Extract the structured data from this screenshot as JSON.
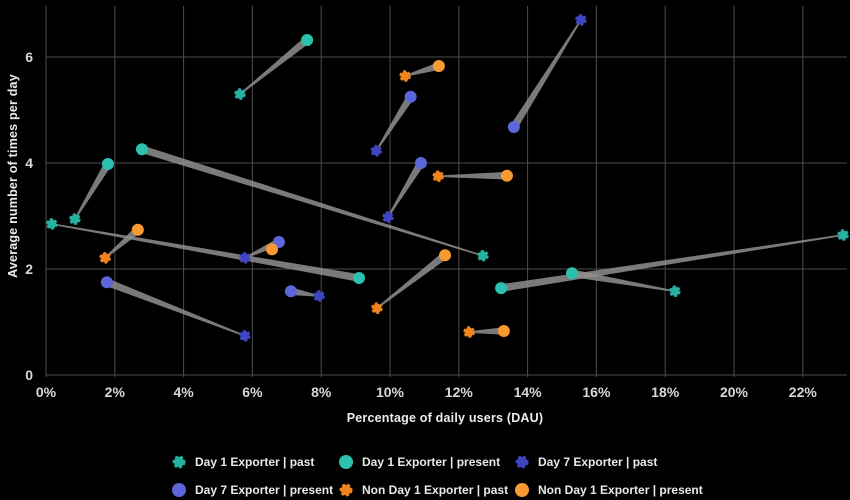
{
  "axes": {
    "x_label": "Percentage of daily users (DAU)",
    "y_label": "Average number of times per day",
    "x_tick_labels": [
      "0%",
      "2%",
      "4%",
      "6%",
      "8%",
      "10%",
      "12%",
      "14%",
      "16%",
      "18%",
      "20%",
      "22%"
    ],
    "x_tick_values": [
      0,
      2,
      4,
      6,
      8,
      10,
      12,
      14,
      16,
      18,
      20,
      22
    ],
    "y_tick_labels": [
      "0",
      "2",
      "4",
      "6"
    ],
    "y_tick_values": [
      0,
      2,
      4,
      6
    ]
  },
  "colors": {
    "background": "#000000",
    "grid": "#4c4c4c",
    "trail": "#8f8f8f",
    "tick_text": "#d8d8d8",
    "teal_past": "#26b1a1",
    "teal_present": "#2cc0ae",
    "blue_past": "#4046c0",
    "blue_present": "#5a66d9",
    "orange_past": "#f28420",
    "orange_present": "#f89a31"
  },
  "chart_data": {
    "type": "scatter",
    "subtype": "comet-pairs",
    "title": "",
    "xlabel": "Percentage of daily users (DAU)",
    "ylabel": "Average number of times per day",
    "x_range_pct": [
      0,
      23.2
    ],
    "ylim": [
      0,
      6.92
    ],
    "grid": true,
    "legend_position": "bottom",
    "series": [
      {
        "name": "Day 1 Exporter",
        "color_past": "#26b1a1",
        "color_present": "#2cc0ae",
        "pairs": [
          {
            "past": [
              0.84,
              2.94
            ],
            "present": [
              1.8,
              3.98
            ]
          },
          {
            "past": [
              0.17,
              2.85
            ],
            "present": [
              9.1,
              1.83
            ]
          },
          {
            "past": [
              12.7,
              2.25
            ],
            "present": [
              2.79,
              4.26
            ]
          },
          {
            "past": [
              5.64,
              5.3
            ],
            "present": [
              7.59,
              6.32
            ]
          },
          {
            "past": [
              23.17,
              2.64
            ],
            "present": [
              13.23,
              1.64
            ]
          },
          {
            "past": [
              18.28,
              1.58
            ],
            "present": [
              15.29,
              1.92
            ]
          }
        ]
      },
      {
        "name": "Day 7 Exporter",
        "color_past": "#4046c0",
        "color_present": "#5a66d9",
        "pairs": [
          {
            "past": [
              5.78,
              0.74
            ],
            "present": [
              1.77,
              1.75
            ]
          },
          {
            "past": [
              5.78,
              2.21
            ],
            "present": [
              6.77,
              2.51
            ]
          },
          {
            "past": [
              7.94,
              1.49
            ],
            "present": [
              7.12,
              1.58
            ]
          },
          {
            "past": [
              9.94,
              2.98
            ],
            "present": [
              10.9,
              4.0
            ]
          },
          {
            "past": [
              9.6,
              4.23
            ],
            "present": [
              10.6,
              5.25
            ]
          },
          {
            "past": [
              15.55,
              6.7
            ],
            "present": [
              13.6,
              4.68
            ]
          }
        ]
      },
      {
        "name": "Non Day 1 Exporter",
        "color_past": "#f28420",
        "color_present": "#f89a31",
        "pairs": [
          {
            "past": [
              1.72,
              2.21
            ],
            "present": [
              2.67,
              2.74
            ]
          },
          {
            "past": [
              9.62,
              1.26
            ],
            "present": [
              11.6,
              2.26
            ]
          },
          {
            "past": [
              11.4,
              3.75
            ],
            "present": [
              13.4,
              3.76
            ]
          },
          {
            "past": [
              10.44,
              5.64
            ],
            "present": [
              11.42,
              5.83
            ]
          },
          {
            "past": [
              12.3,
              0.81
            ],
            "present": [
              13.31,
              0.83
            ]
          }
        ],
        "lone_points": [
          {
            "phase": "present",
            "point": [
              6.57,
              2.37
            ]
          }
        ]
      }
    ]
  },
  "legend": {
    "items": [
      {
        "label": "Day 1 Exporter | past",
        "color": "#26b1a1",
        "style": "dashed"
      },
      {
        "label": "Day 1 Exporter | present",
        "color": "#2cc0ae",
        "style": "solid"
      },
      {
        "label": "Day 7 Exporter | past",
        "color": "#4046c0",
        "style": "dashed"
      },
      {
        "label": "Day 7 Exporter | present",
        "color": "#5a66d9",
        "style": "solid"
      },
      {
        "label": "Non Day 1 Exporter | past",
        "color": "#f28420",
        "style": "dashed"
      },
      {
        "label": "Non Day 1 Exporter | present",
        "color": "#f89a31",
        "style": "solid"
      }
    ]
  }
}
